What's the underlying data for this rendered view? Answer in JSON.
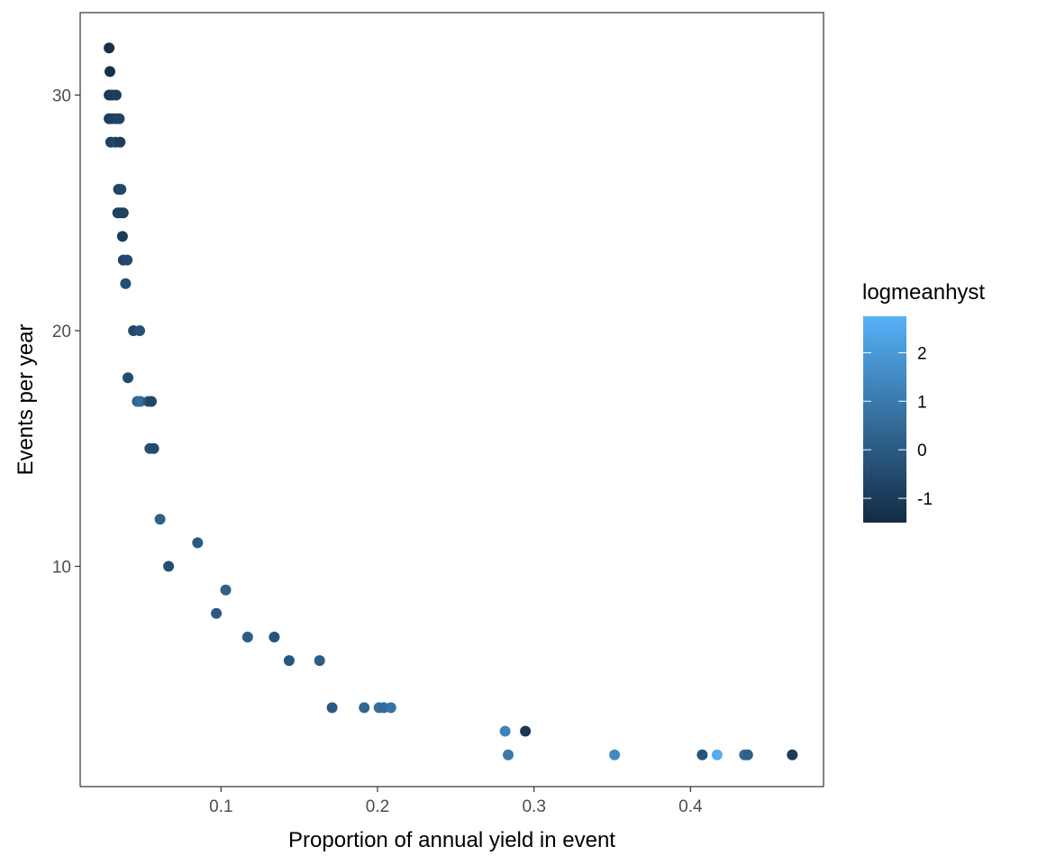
{
  "chart_data": {
    "type": "scatter",
    "xlabel": "Proportion of annual yield in event",
    "ylabel": "Events per year",
    "xlim": [
      0.01,
      0.485
    ],
    "ylim": [
      0.65,
      33.5
    ],
    "x_ticks": [
      0.1,
      0.2,
      0.3,
      0.4
    ],
    "x_tick_labels": [
      "0.1",
      "0.2",
      "0.3",
      "0.4"
    ],
    "y_ticks": [
      10,
      20,
      30
    ],
    "y_tick_labels": [
      "10",
      "20",
      "30"
    ],
    "grid": false,
    "legend": {
      "title": "logmeanhyst",
      "placement": "right",
      "type": "colorbar",
      "range": [
        -1.5,
        2.75
      ],
      "breaks": [
        -1,
        0,
        1,
        2
      ],
      "break_labels": [
        "-1",
        "0",
        "1",
        "2"
      ],
      "color_low": "#132B43",
      "color_high": "#56B1F7"
    },
    "points": [
      {
        "x": 0.0285,
        "y": 32,
        "c": -1.3
      },
      {
        "x": 0.029,
        "y": 31,
        "c": -1.3
      },
      {
        "x": 0.0285,
        "y": 30,
        "c": -1.1
      },
      {
        "x": 0.0305,
        "y": 30,
        "c": -1.0
      },
      {
        "x": 0.033,
        "y": 30,
        "c": -0.9
      },
      {
        "x": 0.0285,
        "y": 29,
        "c": -1.0
      },
      {
        "x": 0.0305,
        "y": 29,
        "c": -0.9
      },
      {
        "x": 0.033,
        "y": 29,
        "c": -0.8
      },
      {
        "x": 0.035,
        "y": 29,
        "c": -0.7
      },
      {
        "x": 0.0295,
        "y": 28,
        "c": -0.8
      },
      {
        "x": 0.0325,
        "y": 28,
        "c": -0.6
      },
      {
        "x": 0.0355,
        "y": 28,
        "c": -0.9
      },
      {
        "x": 0.0345,
        "y": 26,
        "c": -0.8
      },
      {
        "x": 0.036,
        "y": 26,
        "c": -0.6
      },
      {
        "x": 0.034,
        "y": 25,
        "c": -0.9
      },
      {
        "x": 0.0355,
        "y": 25,
        "c": -0.7
      },
      {
        "x": 0.0375,
        "y": 25,
        "c": -0.8
      },
      {
        "x": 0.037,
        "y": 24,
        "c": -1.0
      },
      {
        "x": 0.0375,
        "y": 23,
        "c": -0.7
      },
      {
        "x": 0.04,
        "y": 23,
        "c": -0.5
      },
      {
        "x": 0.039,
        "y": 22,
        "c": -0.4
      },
      {
        "x": 0.044,
        "y": 20,
        "c": -0.6
      },
      {
        "x": 0.048,
        "y": 20,
        "c": -0.3
      },
      {
        "x": 0.0405,
        "y": 18,
        "c": -0.5
      },
      {
        "x": 0.0465,
        "y": 17,
        "c": 0.3
      },
      {
        "x": 0.0485,
        "y": 17,
        "c": 0.6
      },
      {
        "x": 0.0535,
        "y": 17,
        "c": -0.2
      },
      {
        "x": 0.0555,
        "y": 17,
        "c": -0.6
      },
      {
        "x": 0.0545,
        "y": 15,
        "c": -0.3
      },
      {
        "x": 0.057,
        "y": 15,
        "c": -0.5
      },
      {
        "x": 0.061,
        "y": 12,
        "c": 0.2
      },
      {
        "x": 0.085,
        "y": 11,
        "c": 0.0
      },
      {
        "x": 0.0665,
        "y": 10,
        "c": -0.4
      },
      {
        "x": 0.103,
        "y": 9,
        "c": 0.2
      },
      {
        "x": 0.097,
        "y": 8,
        "c": 0.0
      },
      {
        "x": 0.117,
        "y": 7,
        "c": 0.1
      },
      {
        "x": 0.134,
        "y": 7,
        "c": -0.2
      },
      {
        "x": 0.1435,
        "y": 6,
        "c": -0.1
      },
      {
        "x": 0.163,
        "y": 6,
        "c": 0.1
      },
      {
        "x": 0.171,
        "y": 4,
        "c": 0.0
      },
      {
        "x": 0.1915,
        "y": 4,
        "c": 0.4
      },
      {
        "x": 0.201,
        "y": 4,
        "c": 0.7
      },
      {
        "x": 0.204,
        "y": 4,
        "c": 0.5
      },
      {
        "x": 0.2085,
        "y": 4,
        "c": 0.8
      },
      {
        "x": 0.2815,
        "y": 3,
        "c": 1.3
      },
      {
        "x": 0.2945,
        "y": 3,
        "c": -1.1
      },
      {
        "x": 0.2835,
        "y": 2,
        "c": 1.0
      },
      {
        "x": 0.3515,
        "y": 2,
        "c": 1.5
      },
      {
        "x": 0.4075,
        "y": 2,
        "c": -0.2
      },
      {
        "x": 0.417,
        "y": 2,
        "c": 2.6
      },
      {
        "x": 0.4345,
        "y": 2,
        "c": 0.5
      },
      {
        "x": 0.4365,
        "y": 2,
        "c": 0.2
      },
      {
        "x": 0.465,
        "y": 2,
        "c": -1.0
      }
    ]
  }
}
